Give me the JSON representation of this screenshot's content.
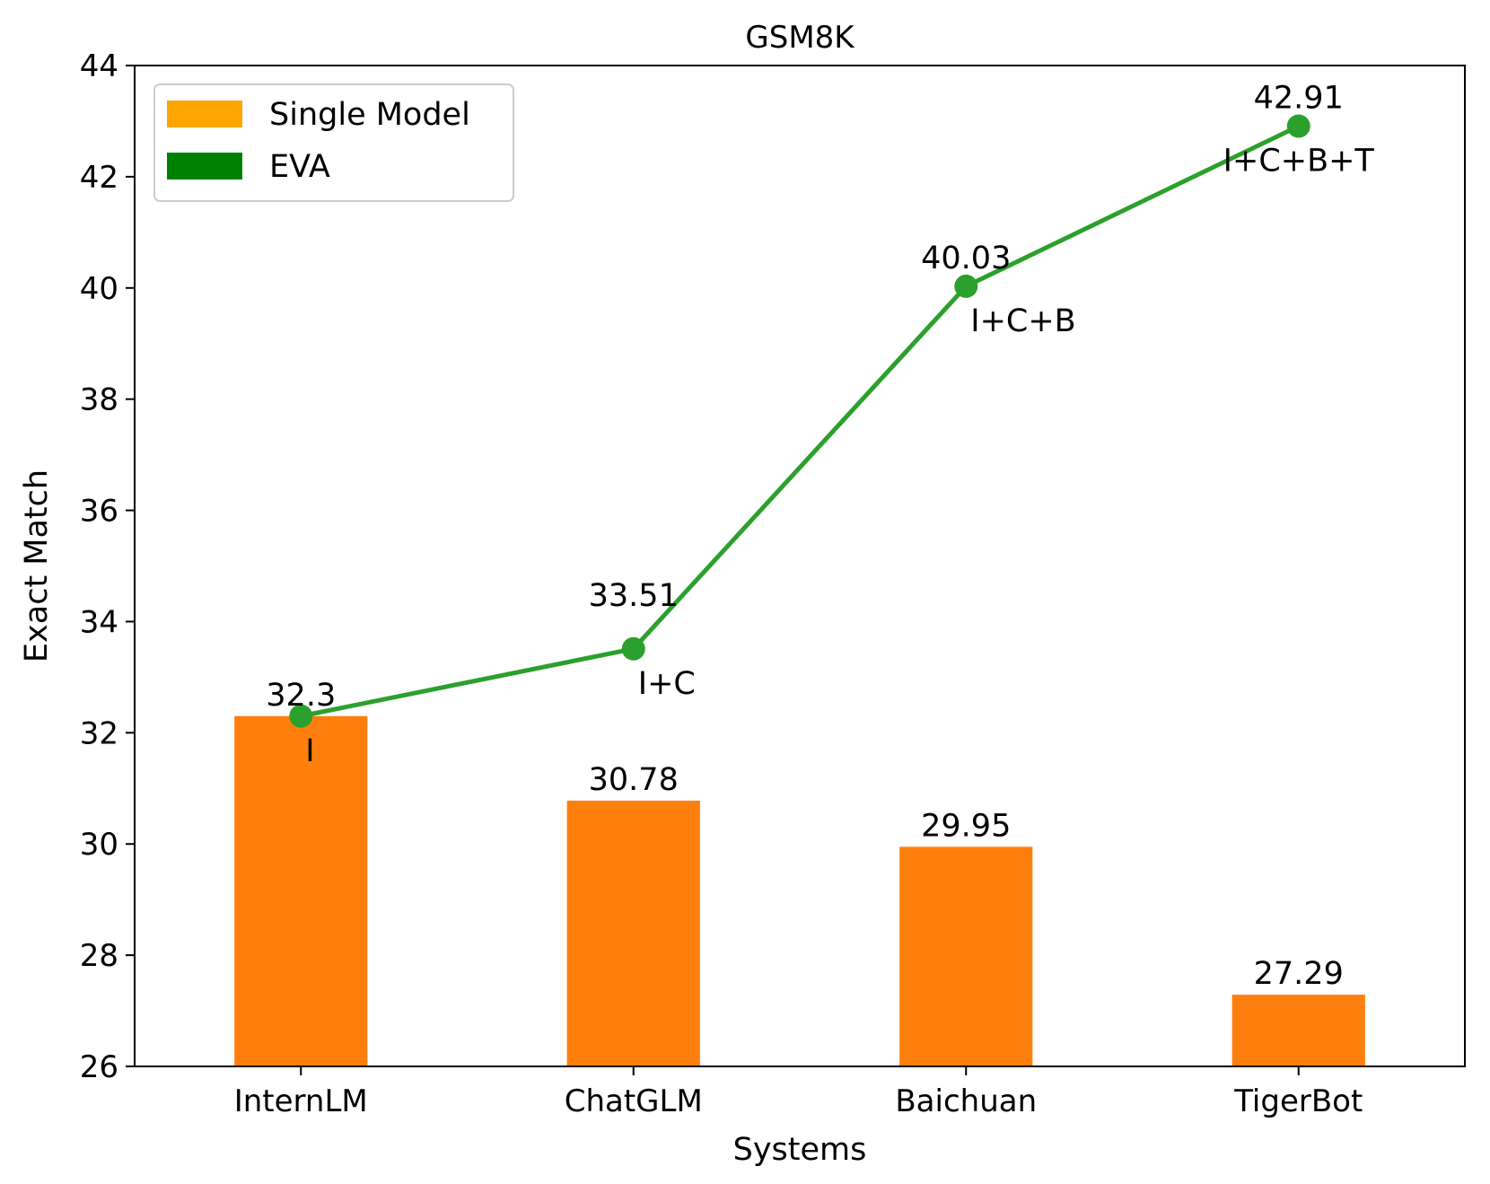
{
  "chart_data": {
    "type": "bar",
    "title": "GSM8K",
    "xlabel": "Systems",
    "ylabel": "Exact Match",
    "ylim": [
      26,
      44
    ],
    "yticks": [
      26,
      28,
      30,
      32,
      34,
      36,
      38,
      40,
      42,
      44
    ],
    "grid": false,
    "legend_position": "top-left",
    "categories": [
      "InternLM",
      "ChatGLM",
      "Baichuan",
      "TigerBot"
    ],
    "series": [
      {
        "name": "Single Model",
        "type": "bar",
        "color": "#ff7f0e",
        "legend_color": "#ffa500",
        "values": [
          32.3,
          30.78,
          29.95,
          27.29
        ],
        "labels": [
          "32.3",
          "30.78",
          "29.95",
          "27.29"
        ]
      },
      {
        "name": "EVA",
        "type": "line",
        "color": "#2ca02c",
        "legend_color": "#008000",
        "values": [
          32.3,
          33.51,
          40.03,
          42.91
        ],
        "labels": [
          "32.3",
          "33.51",
          "40.03",
          "42.91"
        ],
        "annotations": [
          "I",
          "I+C",
          "I+C+B",
          "I+C+B+T"
        ]
      }
    ]
  }
}
